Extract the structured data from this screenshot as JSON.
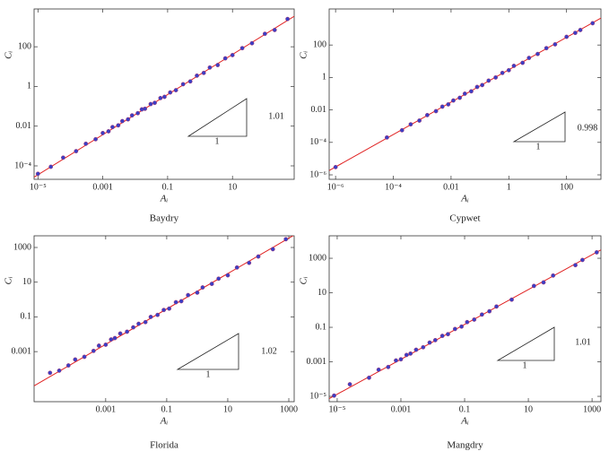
{
  "chart_data": [
    {
      "type": "scatter",
      "title": "Baydry",
      "xlabel": "Aᵢ",
      "ylabel": "Cᵢ",
      "log_x": true,
      "log_y": true,
      "xlim": [
        7.6e-06,
        800
      ],
      "ylim": [
        2.1e-05,
        8000
      ],
      "xticks": [
        {
          "value": 1e-05,
          "label": "10⁻⁵"
        },
        0.001,
        0.1,
        10
      ],
      "yticks": [
        {
          "value": 0.0001,
          "label": "10⁻⁴"
        },
        0.01,
        1,
        100
      ],
      "series": [
        {
          "color": "#3b3fc4",
          "x": [
            1e-05,
            2.5e-05,
            6e-05,
            0.00015,
            0.0003,
            0.0006,
            0.001,
            0.0015,
            0.002,
            0.003,
            0.004,
            0.006,
            0.008,
            0.012,
            0.016,
            0.02,
            0.03,
            0.04,
            0.06,
            0.08,
            0.12,
            0.18,
            0.3,
            0.5,
            0.8,
            1.3,
            2,
            3.5,
            6,
            10,
            20,
            40,
            100,
            200,
            500
          ],
          "values": [
            4e-05,
            9e-05,
            0.00026,
            0.00055,
            0.0013,
            0.0022,
            0.0045,
            0.0055,
            0.009,
            0.011,
            0.018,
            0.022,
            0.035,
            0.045,
            0.07,
            0.075,
            0.13,
            0.15,
            0.26,
            0.3,
            0.5,
            0.65,
            1.3,
            1.8,
            3.5,
            4.8,
            9,
            12,
            26,
            38,
            85,
            150,
            450,
            700,
            2500
          ]
        }
      ],
      "fit_line": {
        "color": "#e02020",
        "x": [
          7.6e-06,
          800
        ],
        "values": [
          2.7e-05,
          3420
        ]
      },
      "annotations": [
        "1",
        "1.01"
      ]
    },
    {
      "type": "scatter",
      "title": "Cypwet",
      "xlabel": "Aᵢ",
      "ylabel": "Cᵢ",
      "log_x": true,
      "log_y": true,
      "xlim": [
        6e-07,
        1550
      ],
      "ylim": [
        5.3e-07,
        16600
      ],
      "xticks": [
        {
          "value": 1e-06,
          "label": "10⁻⁶"
        },
        {
          "value": 0.0001,
          "label": "10⁻⁴"
        },
        0.01,
        1,
        100
      ],
      "yticks": [
        {
          "value": 1e-06,
          "label": "10⁻⁶"
        },
        {
          "value": 0.0001,
          "label": "10⁻⁴"
        },
        0.01,
        1,
        100
      ],
      "series": [
        {
          "color": "#3b3fc4",
          "x": [
            1e-06,
            6e-05,
            0.0002,
            0.0004,
            0.0008,
            0.0015,
            0.003,
            0.005,
            0.008,
            0.012,
            0.02,
            0.03,
            0.05,
            0.08,
            0.12,
            0.2,
            0.35,
            0.6,
            1,
            1.5,
            3,
            5,
            10,
            20,
            40,
            100,
            200,
            300,
            800
          ],
          "values": [
            3e-06,
            0.0002,
            0.00056,
            0.0013,
            0.0022,
            0.0048,
            0.0084,
            0.016,
            0.022,
            0.038,
            0.056,
            0.1,
            0.14,
            0.26,
            0.34,
            0.64,
            1,
            1.9,
            2.8,
            5.2,
            8,
            16,
            28,
            64,
            110,
            320,
            560,
            840,
            2200
          ]
        }
      ],
      "fit_line": {
        "color": "#e02020",
        "x": [
          6e-07,
          1550
        ],
        "values": [
          1.85e-06,
          4580
        ]
      },
      "annotations": [
        "1",
        "0.998"
      ]
    },
    {
      "type": "scatter",
      "title": "Florida",
      "xlabel": "Aᵢ",
      "ylabel": "Cᵢ",
      "log_x": true,
      "log_y": true,
      "xlim": [
        4.5e-06,
        1500
      ],
      "ylim": [
        1.3e-06,
        4700
      ],
      "xticks": [
        0.001,
        0.1,
        10,
        1000
      ],
      "yticks": [
        0.001,
        0.1,
        10,
        1000
      ],
      "series": [
        {
          "color": "#3b3fc4",
          "x": [
            1.5e-05,
            3e-05,
            6e-05,
            0.0001,
            0.0002,
            0.0004,
            0.0006,
            0.001,
            0.0015,
            0.002,
            0.003,
            0.005,
            0.008,
            0.012,
            0.02,
            0.03,
            0.05,
            0.08,
            0.12,
            0.2,
            0.3,
            0.5,
            1,
            1.5,
            3,
            5,
            10,
            20,
            50,
            100,
            300,
            800
          ],
          "values": [
            6e-05,
            8e-05,
            0.00016,
            0.00035,
            0.0005,
            0.0011,
            0.0022,
            0.0025,
            0.005,
            0.006,
            0.011,
            0.014,
            0.025,
            0.04,
            0.05,
            0.1,
            0.13,
            0.25,
            0.3,
            0.7,
            0.8,
            1.8,
            2.5,
            5,
            8,
            16,
            25,
            70,
            130,
            300,
            800,
            3000
          ]
        }
      ],
      "fit_line": {
        "color": "#e02020",
        "x": [
          4.5e-06,
          1500
        ],
        "values": [
          1.06e-05,
          5200
        ]
      },
      "annotations": [
        "1",
        "1.02"
      ]
    },
    {
      "type": "scatter",
      "title": "Mangdry",
      "xlabel": "Aᵢ",
      "ylabel": "Cᵢ",
      "log_x": true,
      "log_y": true,
      "xlim": [
        5.6e-06,
        1900
      ],
      "ylim": [
        4.9e-06,
        20000
      ],
      "xticks": [
        {
          "value": 1e-05,
          "label": "10⁻⁵"
        },
        0.001,
        0.1,
        10,
        1000
      ],
      "yticks": [
        {
          "value": 1e-05,
          "label": "10⁻⁵"
        },
        0.001,
        0.1,
        10,
        1000
      ],
      "series": [
        {
          "color": "#3b3fc4",
          "x": [
            8e-06,
            2.5e-05,
            0.0001,
            0.0002,
            0.0004,
            0.0007,
            0.001,
            0.0015,
            0.002,
            0.003,
            0.005,
            0.008,
            0.012,
            0.02,
            0.03,
            0.05,
            0.08,
            0.12,
            0.2,
            0.35,
            0.6,
            1,
            3,
            15,
            30,
            60,
            300,
            500,
            1400
          ],
          "values": [
            1.1e-05,
            5e-05,
            0.00012,
            0.00035,
            0.0005,
            0.0012,
            0.0014,
            0.0025,
            0.003,
            0.005,
            0.007,
            0.013,
            0.018,
            0.032,
            0.04,
            0.08,
            0.11,
            0.2,
            0.28,
            0.55,
            0.85,
            1.6,
            4,
            25,
            40,
            100,
            400,
            800,
            2200
          ]
        }
      ],
      "fit_line": {
        "color": "#e02020",
        "x": [
          5.6e-06,
          1900
        ],
        "values": [
          7.4e-06,
          3075
        ]
      },
      "annotations": [
        "1",
        "1.01"
      ]
    }
  ]
}
